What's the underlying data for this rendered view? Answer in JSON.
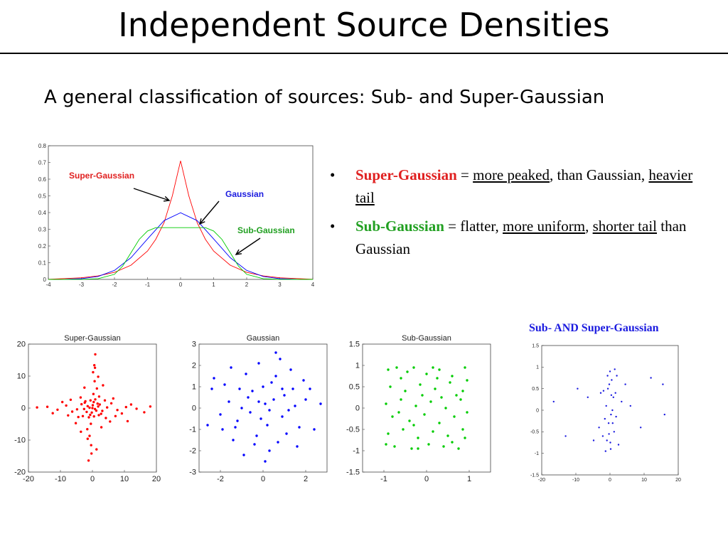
{
  "slide": {
    "title": "Independent Source Densities",
    "subtitle": "A general classification of sources: Sub- and Super-Gaussian"
  },
  "bullets": [
    {
      "dot": "•",
      "term": "Super-Gaussian",
      "eq": " = ",
      "a": "more peaked",
      "b": ", than Gaussian, ",
      "c": "heavier tail",
      "d": ""
    },
    {
      "dot": "•",
      "term": "Sub-Gaussian",
      "eq": " = flatter, ",
      "a": "more uniform",
      "b": ", ",
      "c": "shorter tail",
      "d": " than Gaussian"
    }
  ],
  "colors": {
    "red": "#ff0000",
    "blue": "#0000ff",
    "green": "#00cc00",
    "blueDark": "#1a1adf"
  },
  "chart_data": [
    {
      "type": "line",
      "title": "",
      "xlim": [
        -4,
        4
      ],
      "ylim": [
        0,
        0.8
      ],
      "xticks": [
        "-4",
        "-3",
        "-2",
        "-1",
        "0",
        "1",
        "2",
        "3",
        "4"
      ],
      "yticks": [
        "0",
        "0.1",
        "0.2",
        "0.3",
        "0.4",
        "0.5",
        "0.6",
        "0.7",
        "0.8"
      ],
      "annotations": {
        "super": "Super-Gaussian",
        "gauss": "Gaussian",
        "sub": "Sub-Gaussian"
      },
      "series": [
        {
          "name": "Super-Gaussian",
          "color": "#ff0000",
          "x": [
            -4,
            -3.5,
            -3,
            -2.5,
            -2,
            -1.5,
            -1,
            -0.75,
            -0.5,
            -0.25,
            0,
            0.25,
            0.5,
            0.75,
            1,
            1.5,
            2,
            2.5,
            3,
            3.5,
            4
          ],
          "y": [
            0.001,
            0.005,
            0.01,
            0.021,
            0.042,
            0.085,
            0.17,
            0.24,
            0.34,
            0.5,
            0.71,
            0.5,
            0.34,
            0.24,
            0.17,
            0.085,
            0.042,
            0.021,
            0.01,
            0.005,
            0.001
          ]
        },
        {
          "name": "Gaussian",
          "color": "#0000ff",
          "x": [
            -4,
            -3.5,
            -3,
            -2.5,
            -2,
            -1.5,
            -1,
            -0.5,
            0,
            0.5,
            1,
            1.5,
            2,
            2.5,
            3,
            3.5,
            4
          ],
          "y": [
            0.0001,
            0.0009,
            0.0044,
            0.0175,
            0.054,
            0.13,
            0.242,
            0.352,
            0.399,
            0.352,
            0.242,
            0.13,
            0.054,
            0.0175,
            0.0044,
            0.0009,
            0.0001
          ]
        },
        {
          "name": "Sub-Gaussian",
          "color": "#00cc00",
          "x": [
            -4,
            -3,
            -2.5,
            -2,
            -1.75,
            -1.5,
            -1.25,
            -1,
            -0.75,
            0,
            0.75,
            1,
            1.25,
            1.5,
            1.75,
            2,
            2.5,
            3,
            4
          ],
          "y": [
            0,
            0.0005,
            0.004,
            0.03,
            0.08,
            0.16,
            0.24,
            0.29,
            0.31,
            0.31,
            0.31,
            0.29,
            0.24,
            0.16,
            0.08,
            0.03,
            0.004,
            0.0005,
            0
          ]
        }
      ]
    },
    {
      "type": "scatter",
      "title": "Super-Gaussian",
      "color": "#ff0000",
      "xlim": [
        -20,
        20
      ],
      "ylim": [
        -20,
        20
      ],
      "xticks": [
        -20,
        -10,
        0,
        10,
        20
      ],
      "yticks": [
        20,
        10,
        0,
        -10,
        -20
      ],
      "points": [
        [
          0,
          0
        ],
        [
          1.2,
          -0.8
        ],
        [
          -1.5,
          0.6
        ],
        [
          2.3,
          1.1
        ],
        [
          -0.7,
          -2.1
        ],
        [
          0.4,
          1.9
        ],
        [
          -2.6,
          -0.3
        ],
        [
          1.8,
          0.5
        ],
        [
          -0.2,
          -1.4
        ],
        [
          3.1,
          -0.9
        ],
        [
          -3.4,
          1.2
        ],
        [
          0.9,
          2.7
        ],
        [
          -1.1,
          -2.9
        ],
        [
          2.7,
          -1.8
        ],
        [
          -2.2,
          2.1
        ],
        [
          4.6,
          0.2
        ],
        [
          -4.8,
          -0.4
        ],
        [
          0.3,
          4.4
        ],
        [
          -0.5,
          -4.9
        ],
        [
          5.9,
          1.5
        ],
        [
          -6.3,
          -1.1
        ],
        [
          1.4,
          6.1
        ],
        [
          -1.6,
          -6.6
        ],
        [
          7.8,
          -0.6
        ],
        [
          -8.2,
          0.8
        ],
        [
          0.7,
          8.4
        ],
        [
          -0.9,
          -8.7
        ],
        [
          10.5,
          0.3
        ],
        [
          -10.9,
          -0.5
        ],
        [
          0.2,
          11.2
        ],
        [
          -0.4,
          -11.6
        ],
        [
          13.8,
          -0.2
        ],
        [
          -14.1,
          0.4
        ],
        [
          0.6,
          13.4
        ],
        [
          -0.3,
          -14.2
        ],
        [
          16.2,
          -1.3
        ],
        [
          0.9,
          16.8
        ],
        [
          -1.2,
          -16.4
        ],
        [
          2.1,
          3.6
        ],
        [
          -3.0,
          -2.5
        ],
        [
          3.9,
          2.4
        ],
        [
          -3.7,
          3.3
        ],
        [
          4.2,
          -3.1
        ],
        [
          -4.4,
          -2.8
        ],
        [
          6.5,
          3.0
        ],
        [
          -6.8,
          2.6
        ],
        [
          5.5,
          -4.2
        ],
        [
          -5.2,
          -4.7
        ],
        [
          2.8,
          -6.0
        ],
        [
          -2.5,
          6.4
        ],
        [
          9.2,
          -1.7
        ],
        [
          -9.4,
          1.9
        ],
        [
          1.8,
          9.8
        ],
        [
          -1.5,
          -9.6
        ],
        [
          12.1,
          1.1
        ],
        [
          -12.4,
          -1.6
        ],
        [
          1.3,
          -12.9
        ],
        [
          0.8,
          12.6
        ],
        [
          18.1,
          0.5
        ],
        [
          -17.3,
          0.2
        ],
        [
          11.0,
          -4.1
        ],
        [
          -0.6,
          2.4
        ],
        [
          0.5,
          -2.6
        ],
        [
          1.6,
          1.4
        ],
        [
          -1.8,
          -1.2
        ],
        [
          2.0,
          -2.2
        ],
        [
          -2.4,
          1.7
        ],
        [
          0.1,
          0.9
        ],
        [
          -0.9,
          0.1
        ],
        [
          0.8,
          -0.3
        ],
        [
          7.2,
          -2.5
        ],
        [
          -7.6,
          -2.3
        ],
        [
          3.3,
          7.1
        ],
        [
          -3.6,
          -7.4
        ]
      ]
    },
    {
      "type": "scatter",
      "title": "Gaussian",
      "color": "#0000ff",
      "xlim": [
        -3,
        3
      ],
      "ylim": [
        -3,
        3
      ],
      "xticks": [
        -2,
        0,
        2
      ],
      "yticks": [
        3,
        2,
        1,
        0,
        -1,
        -2,
        -3
      ],
      "points": [
        [
          0.1,
          0.2
        ],
        [
          -0.5,
          0.8
        ],
        [
          0.9,
          -0.4
        ],
        [
          -1.2,
          -0.6
        ],
        [
          1.4,
          0.9
        ],
        [
          -0.3,
          -1.3
        ],
        [
          0.6,
          1.5
        ],
        [
          -1.6,
          0.3
        ],
        [
          1.1,
          -1.2
        ],
        [
          -0.8,
          1.6
        ],
        [
          2.0,
          0.4
        ],
        [
          -2.0,
          -0.3
        ],
        [
          0.3,
          -2.0
        ],
        [
          -0.2,
          2.1
        ],
        [
          1.7,
          -0.9
        ],
        [
          -1.8,
          1.1
        ],
        [
          0.5,
          0.4
        ],
        [
          -0.6,
          -0.2
        ],
        [
          1.0,
          0.6
        ],
        [
          -1.1,
          0.9
        ],
        [
          0.2,
          -0.8
        ],
        [
          -0.4,
          -1.7
        ],
        [
          1.3,
          1.8
        ],
        [
          -1.4,
          -1.5
        ],
        [
          2.4,
          -1.0
        ],
        [
          -2.4,
          0.9
        ],
        [
          0.8,
          2.3
        ],
        [
          -0.9,
          -2.2
        ],
        [
          1.9,
          1.3
        ],
        [
          -1.9,
          -1.0
        ],
        [
          0.0,
          1.0
        ],
        [
          0.7,
          -1.6
        ],
        [
          -1.0,
          0.0
        ],
        [
          1.5,
          0.1
        ],
        [
          -0.1,
          -0.5
        ],
        [
          0.4,
          1.2
        ],
        [
          -0.7,
          0.5
        ],
        [
          1.2,
          -0.1
        ],
        [
          -1.3,
          -0.9
        ],
        [
          2.2,
          0.9
        ],
        [
          -2.3,
          1.4
        ],
        [
          1.6,
          -1.8
        ],
        [
          -1.5,
          1.9
        ],
        [
          0.9,
          0.9
        ],
        [
          -0.2,
          0.3
        ],
        [
          0.3,
          -0.1
        ],
        [
          2.7,
          0.2
        ],
        [
          -2.6,
          -0.8
        ],
        [
          0.1,
          -2.5
        ],
        [
          0.6,
          2.6
        ]
      ]
    },
    {
      "type": "scatter",
      "title": "Sub-Gaussian",
      "color": "#00cc00",
      "xlim": [
        -1.5,
        1.5
      ],
      "ylim": [
        -1.5,
        1.5
      ],
      "xticks": [
        -1,
        0,
        1
      ],
      "yticks": [
        "1.5",
        "1",
        "0.5",
        "0",
        "-0.5",
        "-1",
        "-1.5"
      ],
      "points": [
        [
          -0.9,
          0.9
        ],
        [
          -0.6,
          0.7
        ],
        [
          -0.3,
          0.95
        ],
        [
          0.0,
          0.8
        ],
        [
          0.3,
          0.9
        ],
        [
          0.6,
          0.75
        ],
        [
          0.9,
          0.95
        ],
        [
          -0.85,
          0.5
        ],
        [
          -0.5,
          0.4
        ],
        [
          -0.15,
          0.55
        ],
        [
          0.2,
          0.45
        ],
        [
          0.55,
          0.6
        ],
        [
          0.85,
          0.4
        ],
        [
          -0.95,
          0.1
        ],
        [
          -0.6,
          0.2
        ],
        [
          -0.25,
          0.05
        ],
        [
          0.1,
          0.15
        ],
        [
          0.45,
          0.0
        ],
        [
          0.8,
          0.2
        ],
        [
          -0.8,
          -0.2
        ],
        [
          -0.4,
          -0.3
        ],
        [
          -0.05,
          -0.15
        ],
        [
          0.3,
          -0.35
        ],
        [
          0.65,
          -0.2
        ],
        [
          0.95,
          -0.1
        ],
        [
          -0.9,
          -0.6
        ],
        [
          -0.55,
          -0.5
        ],
        [
          -0.2,
          -0.7
        ],
        [
          0.15,
          -0.55
        ],
        [
          0.5,
          -0.65
        ],
        [
          0.85,
          -0.5
        ],
        [
          -0.75,
          -0.9
        ],
        [
          -0.35,
          -0.95
        ],
        [
          0.05,
          -0.85
        ],
        [
          0.4,
          -0.9
        ],
        [
          0.75,
          -0.95
        ],
        [
          -0.7,
          0.95
        ],
        [
          0.15,
          0.95
        ],
        [
          0.7,
          0.3
        ],
        [
          -0.3,
          -0.4
        ],
        [
          0.95,
          0.65
        ],
        [
          -0.95,
          -0.85
        ],
        [
          0.25,
          0.7
        ],
        [
          -0.45,
          0.85
        ],
        [
          0.6,
          -0.8
        ],
        [
          -0.1,
          0.3
        ],
        [
          0.35,
          0.25
        ],
        [
          -0.65,
          -0.1
        ],
        [
          0.9,
          -0.7
        ],
        [
          -0.2,
          -0.95
        ]
      ]
    },
    {
      "type": "scatter",
      "title": "Sub- AND Super-Gaussian",
      "color": "#1a1adf",
      "xlim": [
        -20,
        20
      ],
      "ylim": [
        -1.5,
        1.5
      ],
      "xticks": [
        -20,
        -10,
        0,
        10,
        20
      ],
      "yticks": [
        "1.5",
        "1",
        "0.5",
        "0",
        "-0.5",
        "-1",
        "-1.5"
      ],
      "points": [
        [
          0,
          0.9
        ],
        [
          0.5,
          0.7
        ],
        [
          -0.6,
          0.5
        ],
        [
          1.0,
          0.3
        ],
        [
          -1.1,
          0.1
        ],
        [
          0.3,
          -0.1
        ],
        [
          -0.4,
          -0.3
        ],
        [
          1.2,
          -0.5
        ],
        [
          -0.9,
          -0.7
        ],
        [
          0.2,
          -0.9
        ],
        [
          2.0,
          0.8
        ],
        [
          -2.1,
          -0.6
        ],
        [
          1.6,
          0.4
        ],
        [
          -1.5,
          -0.2
        ],
        [
          0.7,
          0.0
        ],
        [
          -0.2,
          0.6
        ],
        [
          2.5,
          -0.8
        ],
        [
          -2.7,
          0.4
        ],
        [
          3.4,
          0.2
        ],
        [
          -3.2,
          -0.4
        ],
        [
          0.8,
          -0.3
        ],
        [
          -0.7,
          0.8
        ],
        [
          1.4,
          0.95
        ],
        [
          -1.3,
          -0.95
        ],
        [
          4.5,
          0.6
        ],
        [
          -4.8,
          -0.7
        ],
        [
          6.0,
          0.1
        ],
        [
          -6.5,
          0.3
        ],
        [
          9.0,
          -0.4
        ],
        [
          -9.5,
          0.5
        ],
        [
          12.0,
          0.75
        ],
        [
          -13.0,
          -0.6
        ],
        [
          16.0,
          -0.1
        ],
        [
          -16.5,
          0.2
        ],
        [
          15.5,
          0.6
        ],
        [
          0.4,
          0.35
        ],
        [
          -0.3,
          -0.55
        ],
        [
          1.8,
          -0.15
        ],
        [
          -1.9,
          0.45
        ],
        [
          0.1,
          -0.75
        ]
      ]
    }
  ]
}
